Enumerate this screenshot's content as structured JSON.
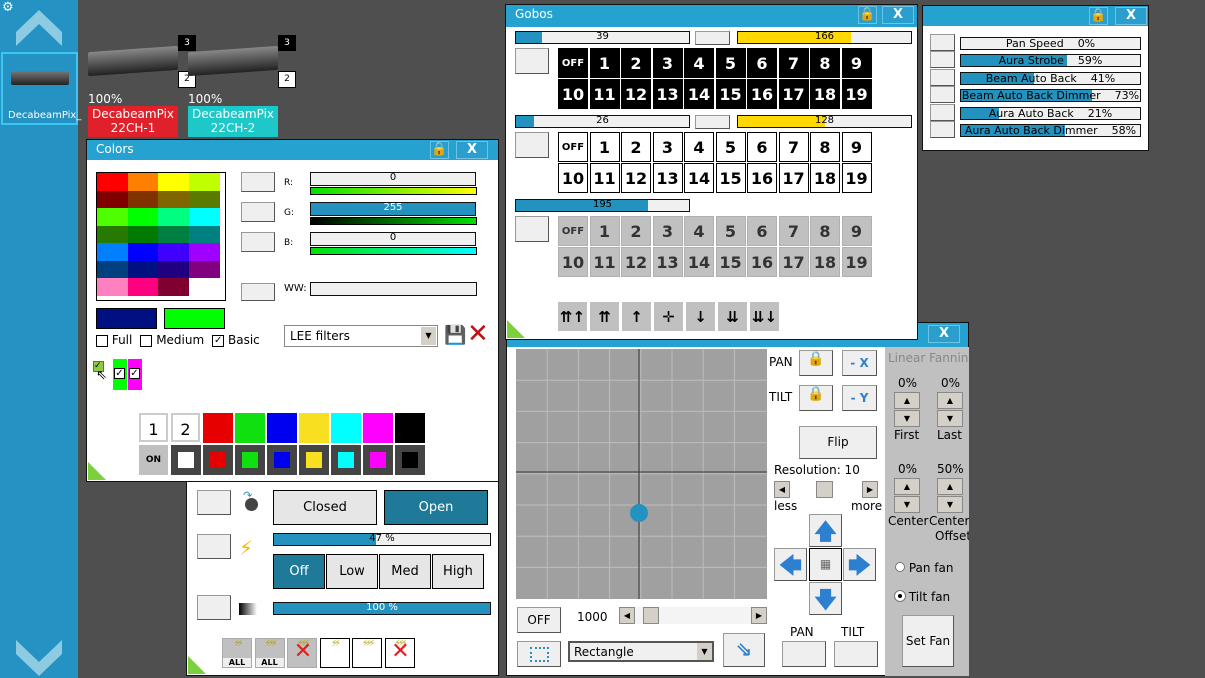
{
  "sidebar": {
    "selected_fixture": "DecabeamPix_"
  },
  "fixtures": [
    {
      "intensity": "100%",
      "name_line1": "DecabeamPix",
      "name_line2": "22CH-1",
      "color": "#e0202a",
      "badge_top": "3",
      "badge_bottom": "2"
    },
    {
      "intensity": "100%",
      "name_line1": "DecabeamPix",
      "name_line2": "22CH-2",
      "color": "#1cc8c8",
      "badge_top": "3",
      "badge_bottom": "2"
    }
  ],
  "params": {
    "items": [
      {
        "label": "Pan Speed",
        "value": "0%",
        "pct": 0
      },
      {
        "label": "Aura Strobe",
        "value": "59%",
        "pct": 59
      },
      {
        "label": "Beam Auto Back",
        "value": "41%",
        "pct": 41
      },
      {
        "label": "Beam Auto Back Dimmer",
        "value": "73%",
        "pct": 73
      },
      {
        "label": "Aura Auto Back",
        "value": "21%",
        "pct": 21
      },
      {
        "label": "Aura Auto Back Dimmer",
        "value": "58%",
        "pct": 58
      }
    ]
  },
  "colors": {
    "title": "Colors",
    "palette": [
      "#ff0000",
      "#ff8000",
      "#ffff00",
      "#bfff00",
      "#800000",
      "#803300",
      "#806600",
      "#5a7a00",
      "#4dff00",
      "#00ff00",
      "#00ff80",
      "#00ffff",
      "#267a00",
      "#007a00",
      "#008040",
      "#008080",
      "#0080ff",
      "#0000ff",
      "#4000ff",
      "#a000ff",
      "#004080",
      "#001080",
      "#200080",
      "#800080",
      "#ff80c0",
      "#ff0080",
      "#800030",
      "#ffffff"
    ],
    "channels": [
      {
        "label": "R:",
        "value": "0",
        "max": 255
      },
      {
        "label": "G:",
        "value": "255",
        "max": 255
      },
      {
        "label": "B:",
        "value": "0",
        "max": 255
      }
    ],
    "ww_label": "WW:",
    "swatch_a": "#001080",
    "swatch_b": "#00ff00",
    "modes": [
      {
        "label": "Full",
        "checked": false
      },
      {
        "label": "Medium",
        "checked": false
      },
      {
        "label": "Basic",
        "checked": true
      }
    ],
    "filter": "LEE filters",
    "presets_top": [
      "1",
      "2"
    ],
    "on_label": "ON",
    "preset_colors": [
      "#e60000",
      "#10e010",
      "#0000f0",
      "#f8e020",
      "#00ffff",
      "#ff00ff",
      "#000000"
    ],
    "small_swatches": [
      "#00ff00",
      "#ff00ff"
    ]
  },
  "shutter": {
    "closed": "Closed",
    "open": "Open",
    "strobe_value": "47 %",
    "strobe_pct": 47,
    "speeds": [
      "Off",
      "Low",
      "Med",
      "High"
    ],
    "dimmer_value": "100 %",
    "dimmer_pct": 100,
    "all_label": "ALL"
  },
  "gobos": {
    "title": "Gobos",
    "off_label": "OFF",
    "numbers": [
      "1",
      "2",
      "3",
      "4",
      "5",
      "6",
      "7",
      "8",
      "9",
      "10",
      "11",
      "12",
      "13",
      "14",
      "15",
      "16",
      "17",
      "18",
      "19"
    ],
    "wheels": [
      {
        "value": "39",
        "rot": "166",
        "style": "black"
      },
      {
        "value": "26",
        "rot": "128",
        "style": "white"
      },
      {
        "value": "195",
        "style": "gray"
      }
    ],
    "accent_yellow": "#ffd800"
  },
  "position": {
    "pan": "PAN",
    "tilt": "TILT",
    "minus_x": "- X",
    "minus_y": "- Y",
    "flip": "Flip",
    "resolution": "Resolution: 10",
    "less": "less",
    "more": "more",
    "off": "OFF",
    "speed": "1000",
    "shape": "Rectangle",
    "fanning": {
      "title": "Linear Fanning",
      "first_val": "0%",
      "last_val": "0%",
      "first": "First",
      "last": "Last",
      "center_val": "0%",
      "offset_val": "50%",
      "center": "Center",
      "center2": "Center",
      "offset": "Offset",
      "pan_fan": "Pan fan",
      "tilt_fan": "Tilt fan",
      "tilt_selected": true,
      "set_fan": "Set Fan"
    }
  }
}
